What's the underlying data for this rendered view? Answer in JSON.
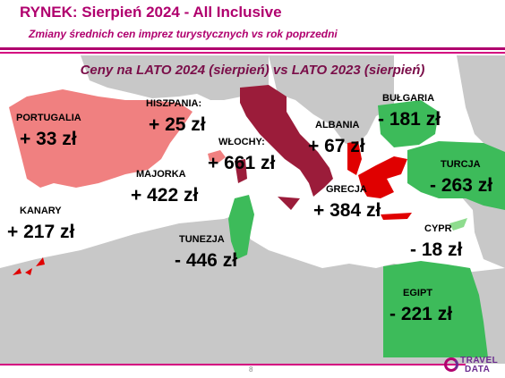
{
  "header": {
    "title": "RYNEK: Sierpień 2024 - All Inclusive",
    "subtitle": "Zmiany średnich cen imprez turystycznych vs rok poprzedni"
  },
  "map_heading": "Ceny na LATO 2024 (sierpień) vs  LATO 2023 (sierpień)",
  "colors": {
    "increase_low": "#f08080",
    "increase_high": "#9b1c3a",
    "increase_red": "#e00000",
    "decrease": "#3dbb5a",
    "land": "#c8c8c8",
    "accent": "#b0006e"
  },
  "destinations": [
    {
      "name": "PORTUGALIA",
      "change": "+ 33 zł"
    },
    {
      "name": "HISZPANIA:",
      "change": "+ 25 zł"
    },
    {
      "name": "WŁOCHY:",
      "change": "+ 661 zł"
    },
    {
      "name": "MAJORKA",
      "change": "+ 422 zł"
    },
    {
      "name": "KANARY",
      "change": "+ 217 zł"
    },
    {
      "name": "TUNEZJA",
      "change": "- 446 zł"
    },
    {
      "name": "ALBANIA",
      "change": "+ 67 zł"
    },
    {
      "name": "BUŁGARIA",
      "change": "- 181 zł"
    },
    {
      "name": "TURCJA",
      "change": "- 263 zł"
    },
    {
      "name": "GRECJA",
      "change": "+ 384 zł"
    },
    {
      "name": "CYPR",
      "change": "- 18 zł"
    },
    {
      "name": "EGIPT",
      "change": "- 221 zł"
    }
  ],
  "footer": {
    "page_number": "8",
    "logo_line1": "TRAVEL",
    "logo_line2": "DATA"
  }
}
